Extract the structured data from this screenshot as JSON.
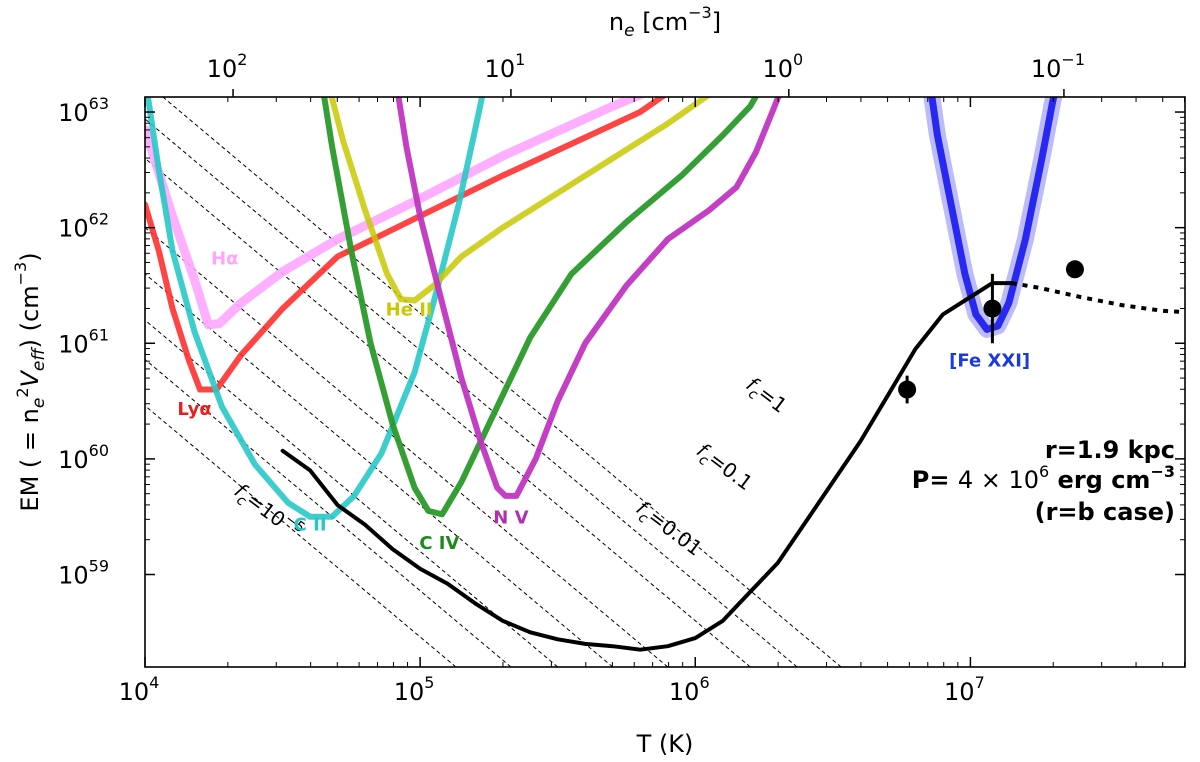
{
  "chart_data": {
    "type": "line",
    "xlabel": "T (K)",
    "ylabel": "EM ( = n_e^2 V_eff) (cm^-3)",
    "top_xlabel": "n_e [cm^-3]",
    "xscale": "log",
    "yscale": "log",
    "xlim_log10": [
      4.0,
      7.78
    ],
    "ylim_log10": [
      58.2,
      63.13
    ],
    "x_ticks": [
      {
        "exp": 4,
        "label": "10",
        "sup": "4"
      },
      {
        "exp": 5,
        "label": "10",
        "sup": "5"
      },
      {
        "exp": 6,
        "label": "10",
        "sup": "6"
      },
      {
        "exp": 7,
        "label": "10",
        "sup": "7"
      }
    ],
    "y_ticks": [
      {
        "exp": 59,
        "label": "10",
        "sup": "59"
      },
      {
        "exp": 60,
        "label": "10",
        "sup": "60"
      },
      {
        "exp": 61,
        "label": "10",
        "sup": "61"
      },
      {
        "exp": 62,
        "label": "10",
        "sup": "62"
      },
      {
        "exp": 63,
        "label": "10",
        "sup": "63"
      }
    ],
    "top_ticks": [
      {
        "logT": 4.32,
        "label": "10",
        "sup": "2"
      },
      {
        "logT": 5.33,
        "label": "10",
        "sup": "1"
      },
      {
        "logT": 6.34,
        "label": "10",
        "sup": "0"
      },
      {
        "logT": 7.34,
        "label": "10",
        "sup": "−1"
      }
    ],
    "series": [
      {
        "name": "Hα",
        "color": "#ffa6ff",
        "opacity": 0.9,
        "width": 9,
        "label_pos": [
          4.29,
          61.68
        ],
        "label_color": "#ffa6ff",
        "points": [
          [
            4.0,
            62.85
          ],
          [
            4.1,
            62.1
          ],
          [
            4.18,
            61.55
          ],
          [
            4.23,
            61.16
          ],
          [
            4.27,
            61.17
          ],
          [
            4.35,
            61.35
          ],
          [
            4.5,
            61.62
          ],
          [
            4.7,
            61.9
          ],
          [
            5.0,
            62.25
          ],
          [
            5.3,
            62.62
          ],
          [
            5.7,
            63.05
          ],
          [
            5.85,
            63.2
          ]
        ]
      },
      {
        "name": "Lyα",
        "color": "#ff3030",
        "opacity": 0.9,
        "width": 6,
        "label_pos": [
          4.18,
          60.38
        ],
        "label_color": "#e62020",
        "points": [
          [
            4.0,
            62.2
          ],
          [
            4.05,
            61.8
          ],
          [
            4.1,
            61.3
          ],
          [
            4.16,
            60.85
          ],
          [
            4.2,
            60.6
          ],
          [
            4.26,
            60.6
          ],
          [
            4.35,
            60.9
          ],
          [
            4.5,
            61.3
          ],
          [
            4.7,
            61.75
          ],
          [
            5.0,
            62.1
          ],
          [
            5.3,
            62.45
          ],
          [
            5.6,
            62.78
          ],
          [
            5.8,
            63.0
          ],
          [
            5.92,
            63.2
          ]
        ]
      },
      {
        "name": "C II",
        "color": "#28c8c8",
        "opacity": 0.9,
        "width": 6,
        "label_pos": [
          4.6,
          59.38
        ],
        "label_color": "#28c8c8",
        "points": [
          [
            4.0,
            63.3
          ],
          [
            4.05,
            62.5
          ],
          [
            4.1,
            61.8
          ],
          [
            4.18,
            61.1
          ],
          [
            4.28,
            60.45
          ],
          [
            4.4,
            59.95
          ],
          [
            4.52,
            59.62
          ],
          [
            4.6,
            59.5
          ],
          [
            4.68,
            59.5
          ],
          [
            4.76,
            59.68
          ],
          [
            4.86,
            60.05
          ],
          [
            4.98,
            60.75
          ],
          [
            5.06,
            61.45
          ],
          [
            5.14,
            62.2
          ],
          [
            5.2,
            62.85
          ],
          [
            5.24,
            63.3
          ]
        ]
      },
      {
        "name": "He II",
        "color": "#c8c800",
        "opacity": 0.85,
        "width": 6,
        "label_pos": [
          4.96,
          61.24
        ],
        "label_color": "#c8c800",
        "points": [
          [
            4.66,
            63.3
          ],
          [
            4.72,
            62.75
          ],
          [
            4.8,
            62.15
          ],
          [
            4.88,
            61.6
          ],
          [
            4.93,
            61.38
          ],
          [
            4.98,
            61.37
          ],
          [
            5.05,
            61.5
          ],
          [
            5.15,
            61.75
          ],
          [
            5.3,
            62.0
          ],
          [
            5.5,
            62.3
          ],
          [
            5.7,
            62.6
          ],
          [
            5.9,
            62.9
          ],
          [
            6.05,
            63.15
          ],
          [
            6.12,
            63.3
          ]
        ]
      },
      {
        "name": "C IV",
        "color": "#2a9a2a",
        "opacity": 0.95,
        "width": 6,
        "label_pos": [
          5.07,
          59.22
        ],
        "label_color": "#1f8a1f",
        "points": [
          [
            4.64,
            63.3
          ],
          [
            4.68,
            62.7
          ],
          [
            4.75,
            61.8
          ],
          [
            4.82,
            61.0
          ],
          [
            4.9,
            60.3
          ],
          [
            4.98,
            59.75
          ],
          [
            5.03,
            59.55
          ],
          [
            5.08,
            59.52
          ],
          [
            5.15,
            59.8
          ],
          [
            5.25,
            60.3
          ],
          [
            5.4,
            61.05
          ],
          [
            5.55,
            61.6
          ],
          [
            5.75,
            62.05
          ],
          [
            5.95,
            62.45
          ],
          [
            6.1,
            62.8
          ],
          [
            6.2,
            63.05
          ],
          [
            6.26,
            63.3
          ]
        ]
      },
      {
        "name": "N V",
        "color": "#c035c0",
        "opacity": 0.95,
        "width": 6,
        "label_pos": [
          5.33,
          59.44
        ],
        "label_color": "#b030b0",
        "points": [
          [
            4.91,
            63.3
          ],
          [
            4.95,
            62.7
          ],
          [
            5.0,
            62.1
          ],
          [
            5.08,
            61.35
          ],
          [
            5.15,
            60.7
          ],
          [
            5.22,
            60.15
          ],
          [
            5.28,
            59.75
          ],
          [
            5.31,
            59.68
          ],
          [
            5.35,
            59.68
          ],
          [
            5.42,
            60.0
          ],
          [
            5.5,
            60.5
          ],
          [
            5.6,
            61.0
          ],
          [
            5.75,
            61.5
          ],
          [
            5.9,
            61.9
          ],
          [
            6.05,
            62.15
          ],
          [
            6.15,
            62.35
          ],
          [
            6.22,
            62.65
          ],
          [
            6.28,
            63.0
          ],
          [
            6.33,
            63.3
          ]
        ]
      },
      {
        "name": "[Fe XXI]",
        "color": "#2020f0",
        "opacity": 0.95,
        "width": 7,
        "band": true,
        "label_pos": [
          7.07,
          60.8
        ],
        "label_color": "#1a3ae0",
        "points": [
          [
            6.85,
            63.3
          ],
          [
            6.88,
            62.8
          ],
          [
            6.93,
            62.2
          ],
          [
            6.98,
            61.6
          ],
          [
            7.02,
            61.25
          ],
          [
            7.06,
            61.12
          ],
          [
            7.1,
            61.15
          ],
          [
            7.14,
            61.35
          ],
          [
            7.2,
            61.9
          ],
          [
            7.26,
            62.6
          ],
          [
            7.3,
            63.1
          ],
          [
            7.32,
            63.3
          ]
        ]
      },
      {
        "name": "model",
        "color": "#000000",
        "opacity": 1,
        "width": 4,
        "points": [
          [
            4.5,
            60.07
          ],
          [
            4.6,
            59.9
          ],
          [
            4.7,
            59.6
          ],
          [
            4.8,
            59.43
          ],
          [
            4.9,
            59.22
          ],
          [
            5.0,
            59.05
          ],
          [
            5.1,
            58.92
          ],
          [
            5.2,
            58.75
          ],
          [
            5.3,
            58.6
          ],
          [
            5.4,
            58.5
          ],
          [
            5.5,
            58.44
          ],
          [
            5.6,
            58.4
          ],
          [
            5.7,
            58.38
          ],
          [
            5.8,
            58.35
          ],
          [
            5.9,
            58.38
          ],
          [
            6.0,
            58.45
          ],
          [
            6.1,
            58.6
          ],
          [
            6.2,
            58.85
          ],
          [
            6.3,
            59.1
          ],
          [
            6.4,
            59.45
          ],
          [
            6.5,
            59.8
          ],
          [
            6.6,
            60.15
          ],
          [
            6.7,
            60.55
          ],
          [
            6.8,
            60.95
          ],
          [
            6.9,
            61.25
          ],
          [
            7.0,
            61.4
          ],
          [
            7.08,
            61.52
          ],
          [
            7.15,
            61.52
          ]
        ]
      },
      {
        "name": "model-dotted",
        "color": "#000000",
        "opacity": 1,
        "width": 4,
        "dotted": true,
        "points": [
          [
            7.15,
            61.52
          ],
          [
            7.25,
            61.48
          ],
          [
            7.4,
            61.4
          ],
          [
            7.55,
            61.33
          ],
          [
            7.7,
            61.28
          ],
          [
            7.78,
            61.27
          ]
        ]
      }
    ],
    "data_points": [
      {
        "x": 6.77,
        "y": 60.6,
        "err_low": 60.48,
        "err_high": 60.72
      },
      {
        "x": 7.08,
        "y": 61.3,
        "err_low": 61.0,
        "err_high": 61.6
      },
      {
        "x": 7.38,
        "y": 61.64,
        "err_low": null,
        "err_high": null
      }
    ],
    "fc_lines": [
      {
        "intercept_logT": 6.53,
        "label": "f",
        "sub": "c",
        "value": "=1",
        "label_pos": [
          6.18,
          60.62
        ],
        "angle": 37
      },
      {
        "intercept_logT": 6.37,
        "label": "f",
        "sub": "c",
        "value": "=0.1",
        "label_pos": [
          6.0,
          60.05
        ],
        "angle": 37
      },
      {
        "intercept_logT": 6.2,
        "label": "f",
        "sub": "c",
        "value": "=0.01",
        "label_pos": [
          5.78,
          59.55
        ],
        "angle": 37
      },
      {
        "intercept_logT": 5.9,
        "label": "f",
        "sub": "c",
        "value": "",
        "label_pos": [
          0,
          0
        ],
        "angle": 37
      },
      {
        "intercept_logT": 5.7,
        "label": "f",
        "sub": "c",
        "value": "",
        "label_pos": [
          0,
          0
        ],
        "angle": 37
      },
      {
        "intercept_logT": 5.5,
        "label": "f",
        "sub": "c",
        "value": "",
        "label_pos": [
          0,
          0
        ],
        "angle": 37
      },
      {
        "intercept_logT": 5.33,
        "label": "f",
        "sub": "c",
        "value": "",
        "label_pos": [
          0,
          0
        ],
        "angle": 37
      },
      {
        "intercept_logT": 5.13,
        "label": "f",
        "sub": "c",
        "value": "=10",
        "exp": "−5",
        "label_pos": [
          4.32,
          59.7
        ],
        "angle": 37
      }
    ],
    "annotations": {
      "line1": "r=1.9 kpc",
      "line2_prefix": "P= ",
      "line2_math": "4 × 10",
      "line2_exp": "6",
      "line2_suffix": " erg cm",
      "line2_suffix_exp": "−3",
      "line3": "(r=b case)"
    }
  }
}
